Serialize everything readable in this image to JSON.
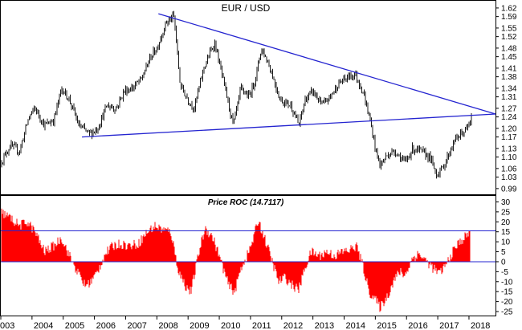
{
  "chart_data": [
    {
      "type": "ohlc",
      "title": "EUR / USD",
      "x_labels": [
        "003",
        "2004",
        "2005",
        "2006",
        "2007",
        "2008",
        "2009",
        "2010",
        "2011",
        "2012",
        "2013",
        "2014",
        "2015",
        "2016",
        "2017",
        "2018"
      ],
      "y_ticks": [
        0.99,
        1.03,
        1.06,
        1.1,
        1.13,
        1.17,
        1.2,
        1.24,
        1.27,
        1.31,
        1.34,
        1.38,
        1.41,
        1.45,
        1.48,
        1.52,
        1.55,
        1.59,
        1.62
      ],
      "y_tick_labels": [
        "0.99",
        "1.03",
        "1.06",
        "1.10",
        "1.13",
        "1.17",
        "1.20",
        "1.24",
        "1.27",
        "1.31",
        "1.34",
        "1.38",
        "1.41",
        "1.45",
        "1.48",
        "1.52",
        "1.55",
        "1.59",
        "1.62"
      ],
      "ylim": [
        0.97,
        1.645
      ],
      "xlim": [
        2003.0,
        2018.85
      ],
      "grid": false,
      "price_path": [
        [
          2003.0,
          1.08
        ],
        [
          2003.3,
          1.14
        ],
        [
          2003.6,
          1.12
        ],
        [
          2003.9,
          1.24
        ],
        [
          2004.1,
          1.27
        ],
        [
          2004.4,
          1.21
        ],
        [
          2004.7,
          1.23
        ],
        [
          2004.95,
          1.34
        ],
        [
          2005.2,
          1.3
        ],
        [
          2005.5,
          1.21
        ],
        [
          2005.85,
          1.18
        ],
        [
          2006.1,
          1.2
        ],
        [
          2006.4,
          1.28
        ],
        [
          2006.7,
          1.27
        ],
        [
          2006.95,
          1.33
        ],
        [
          2007.2,
          1.34
        ],
        [
          2007.5,
          1.37
        ],
        [
          2007.8,
          1.45
        ],
        [
          2008.0,
          1.48
        ],
        [
          2008.3,
          1.57
        ],
        [
          2008.55,
          1.59
        ],
        [
          2008.75,
          1.35
        ],
        [
          2009.0,
          1.3
        ],
        [
          2009.2,
          1.27
        ],
        [
          2009.5,
          1.41
        ],
        [
          2009.85,
          1.5
        ],
        [
          2010.1,
          1.38
        ],
        [
          2010.45,
          1.21
        ],
        [
          2010.7,
          1.34
        ],
        [
          2010.95,
          1.31
        ],
        [
          2011.15,
          1.37
        ],
        [
          2011.35,
          1.48
        ],
        [
          2011.6,
          1.42
        ],
        [
          2011.95,
          1.3
        ],
        [
          2012.3,
          1.28
        ],
        [
          2012.55,
          1.21
        ],
        [
          2012.75,
          1.3
        ],
        [
          2013.0,
          1.33
        ],
        [
          2013.3,
          1.28
        ],
        [
          2013.55,
          1.31
        ],
        [
          2013.85,
          1.36
        ],
        [
          2014.15,
          1.38
        ],
        [
          2014.35,
          1.39
        ],
        [
          2014.6,
          1.33
        ],
        [
          2014.85,
          1.22
        ],
        [
          2015.0,
          1.13
        ],
        [
          2015.15,
          1.07
        ],
        [
          2015.4,
          1.11
        ],
        [
          2015.65,
          1.12
        ],
        [
          2015.95,
          1.08
        ],
        [
          2016.2,
          1.13
        ],
        [
          2016.45,
          1.12
        ],
        [
          2016.75,
          1.1
        ],
        [
          2016.95,
          1.04
        ],
        [
          2017.15,
          1.06
        ],
        [
          2017.35,
          1.11
        ],
        [
          2017.55,
          1.16
        ],
        [
          2017.75,
          1.18
        ],
        [
          2017.95,
          1.2
        ],
        [
          2018.1,
          1.24
        ]
      ],
      "trendlines": [
        {
          "from": [
            2008.05,
            1.6
          ],
          "to": [
            2018.85,
            1.25
          ]
        },
        {
          "from": [
            2005.6,
            1.17
          ],
          "to": [
            2018.85,
            1.25
          ]
        }
      ],
      "colors": {
        "bars": "#000000",
        "trendline": "#2424d0"
      }
    },
    {
      "type": "area",
      "title": "Price ROC (14.7117)",
      "y_ticks": [
        -25,
        -20,
        -15,
        -10,
        -5,
        0,
        5,
        10,
        15,
        20,
        25,
        30
      ],
      "y_tick_labels": [
        "-25",
        "-20",
        "-15",
        "-10",
        "-5",
        "0",
        "5",
        "10",
        "15",
        "20",
        "25",
        "30"
      ],
      "ylim": [
        -27,
        33
      ],
      "xlim": [
        2003.0,
        2018.85
      ],
      "reference_lines": [
        15.5,
        0
      ],
      "roc_path": [
        [
          2003.0,
          25
        ],
        [
          2003.3,
          22
        ],
        [
          2003.6,
          18
        ],
        [
          2003.85,
          20
        ],
        [
          2004.1,
          15
        ],
        [
          2004.4,
          5
        ],
        [
          2004.7,
          8
        ],
        [
          2004.95,
          12
        ],
        [
          2005.2,
          3
        ],
        [
          2005.45,
          -5
        ],
        [
          2005.7,
          -12
        ],
        [
          2005.9,
          -10
        ],
        [
          2006.1,
          -5
        ],
        [
          2006.35,
          4
        ],
        [
          2006.6,
          8
        ],
        [
          2006.85,
          9
        ],
        [
          2007.1,
          8
        ],
        [
          2007.4,
          9
        ],
        [
          2007.7,
          15
        ],
        [
          2007.95,
          18
        ],
        [
          2008.2,
          16
        ],
        [
          2008.45,
          15
        ],
        [
          2008.7,
          -5
        ],
        [
          2008.95,
          -13
        ],
        [
          2009.1,
          -15
        ],
        [
          2009.35,
          5
        ],
        [
          2009.55,
          17
        ],
        [
          2009.8,
          12
        ],
        [
          2010.0,
          3
        ],
        [
          2010.3,
          -12
        ],
        [
          2010.5,
          -15
        ],
        [
          2010.7,
          -3
        ],
        [
          2010.95,
          5
        ],
        [
          2011.1,
          12
        ],
        [
          2011.25,
          21
        ],
        [
          2011.45,
          12
        ],
        [
          2011.7,
          0
        ],
        [
          2011.9,
          -10
        ],
        [
          2012.1,
          -8
        ],
        [
          2012.35,
          -12
        ],
        [
          2012.55,
          -14
        ],
        [
          2012.75,
          -3
        ],
        [
          2012.95,
          5
        ],
        [
          2013.2,
          3
        ],
        [
          2013.45,
          5
        ],
        [
          2013.7,
          3
        ],
        [
          2013.95,
          5
        ],
        [
          2014.2,
          6
        ],
        [
          2014.4,
          8
        ],
        [
          2014.6,
          -2
        ],
        [
          2014.8,
          -15
        ],
        [
          2015.0,
          -19
        ],
        [
          2015.15,
          -23
        ],
        [
          2015.4,
          -17
        ],
        [
          2015.6,
          -9
        ],
        [
          2015.8,
          -5
        ],
        [
          2015.95,
          -7
        ],
        [
          2016.2,
          2
        ],
        [
          2016.4,
          4
        ],
        [
          2016.65,
          0
        ],
        [
          2016.9,
          -4
        ],
        [
          2017.05,
          -6
        ],
        [
          2017.25,
          -2
        ],
        [
          2017.45,
          4
        ],
        [
          2017.65,
          9
        ],
        [
          2017.85,
          12
        ],
        [
          2018.05,
          15
        ]
      ],
      "colors": {
        "fill": "#ff0000",
        "reference_line": "#2424d0"
      }
    }
  ]
}
